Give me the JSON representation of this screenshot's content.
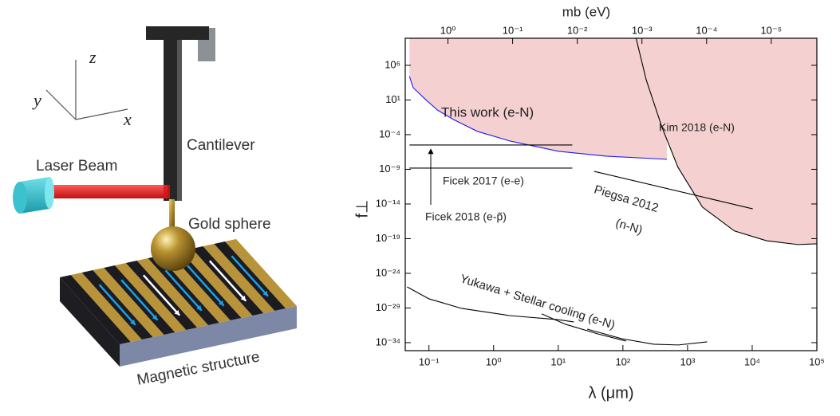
{
  "illustration": {
    "axes": {
      "z": "z",
      "y": "y",
      "x": "x"
    },
    "labels": {
      "laser": "Laser Beam",
      "cantilever": "Cantilever",
      "sphere": "Gold sphere",
      "structure": "Magnetic structure"
    }
  },
  "chart_data": {
    "type": "line",
    "xlabel": "λ (μm)",
    "ylabel": "f⊥",
    "x2label": "mb (eV)",
    "xscale": "log",
    "yscale": "log",
    "xlim": [
      0.043,
      100000
    ],
    "ylim": [
      7e-36,
      8000000000.0
    ],
    "x2lim": [
      4.58,
      1.97e-06
    ],
    "xticks": [
      {
        "value": 0.1,
        "label": "10⁻¹"
      },
      {
        "value": 1,
        "label": "10⁰"
      },
      {
        "value": 10,
        "label": "10¹"
      },
      {
        "value": 100,
        "label": "10²"
      },
      {
        "value": 1000,
        "label": "10³"
      },
      {
        "value": 10000,
        "label": "10⁴"
      },
      {
        "value": 100000,
        "label": "10⁵"
      }
    ],
    "x2ticks": [
      {
        "value": 1,
        "label": "10⁰"
      },
      {
        "value": 0.1,
        "label": "10⁻¹"
      },
      {
        "value": 0.01,
        "label": "10⁻²"
      },
      {
        "value": 0.001,
        "label": "10⁻³"
      },
      {
        "value": 0.0001,
        "label": "10⁻⁴"
      },
      {
        "value": 1e-05,
        "label": "10⁻⁵"
      }
    ],
    "yticks": [
      {
        "value": 1000000.0,
        "label": "10⁶"
      },
      {
        "value": 10,
        "label": "10¹"
      },
      {
        "value": 0.0001,
        "label": "10⁻⁴"
      },
      {
        "value": 1e-09,
        "label": "10⁻⁹"
      },
      {
        "value": 1e-14,
        "label": "10⁻¹⁴"
      },
      {
        "value": 1e-19,
        "label": "10⁻¹⁹"
      },
      {
        "value": 1e-24,
        "label": "10⁻²⁴"
      },
      {
        "value": 1e-29,
        "label": "10⁻²⁹"
      },
      {
        "value": 1e-34,
        "label": "10⁻³⁴"
      }
    ],
    "series": [
      {
        "label": [
          "This work (e-N)"
        ],
        "color": "#1a1aff",
        "shade": "#f5d0d0",
        "x": [
          0.05,
          0.057,
          0.089,
          0.135,
          0.24,
          0.56,
          1.8,
          10,
          55,
          480
        ],
        "values": [
          25000,
          600,
          11.5,
          0.36,
          0.015,
          0.0003,
          1.2e-05,
          4e-07,
          8e-08,
          2.8e-08
        ]
      },
      {
        "label": [
          "Kim 2018 (e-N)"
        ],
        "color": "#000000",
        "shade": "#f5d0d0",
        "x": [
          160,
          229,
          403,
          710,
          1700,
          5300,
          16600,
          51000,
          100000
        ],
        "values": [
          8000000000.0,
          8500,
          0.0011,
          2e-09,
          3.5e-15,
          1.3e-18,
          5e-20,
          1.4e-20,
          1.8e-20
        ]
      },
      {
        "label": [
          "Ficek 2017 (e-e)"
        ],
        "color": "#000000",
        "x": [
          0.05,
          16.5
        ],
        "values": [
          1.5e-09,
          1.5e-09
        ]
      },
      {
        "label": [
          "Ficek 2018 (e-p̃)"
        ],
        "color": "#000000",
        "x": [
          0.05,
          16.5
        ],
        "values": [
          3.2e-06,
          3.2e-06
        ]
      },
      {
        "label": [
          "Piegsa 2012",
          "(n-N)"
        ],
        "color": "#000000",
        "x": [
          36,
          10200
        ],
        "values": [
          5e-10,
          2e-15
        ]
      },
      {
        "label": [
          "Yukawa + Stellar cooling (e-N)"
        ],
        "color": "#000000",
        "x": [
          0.046,
          0.1,
          0.32,
          1.77,
          9.8,
          17.4
        ],
        "values": [
          1.1e-26,
          2.1e-28,
          8.7e-30,
          8e-31,
          2.1e-31,
          9.8e-32
        ]
      },
      {
        "color": "#000000",
        "x": [
          5.56,
          13,
          41,
          112
        ],
        "values": [
          1.4e-30,
          4.4e-32,
          1.8e-33,
          1.7e-34
        ]
      },
      {
        "color": "#000000",
        "x": [
          28,
          96,
          300,
          720,
          2000
        ],
        "values": [
          8.9e-33,
          3.7e-34,
          5.9e-35,
          4.6e-35,
          1.3e-34
        ]
      }
    ]
  }
}
